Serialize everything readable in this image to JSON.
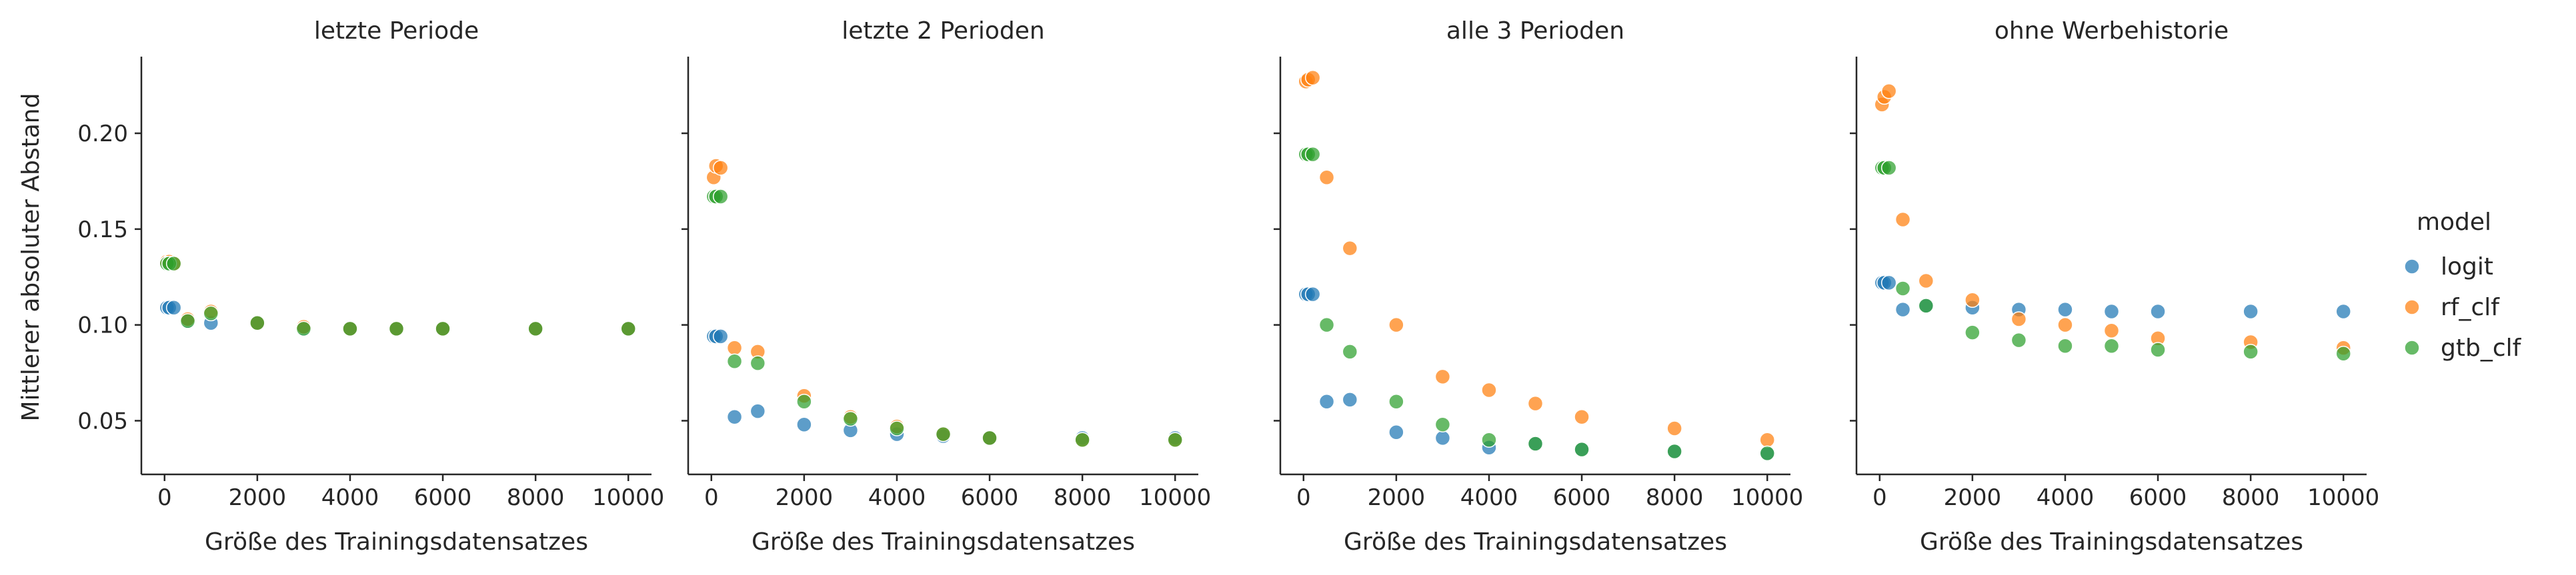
{
  "figure": {
    "ylabel": "Mittlerer absoluter Abstand",
    "legend_title": "model",
    "legend_position": "right",
    "legend_entries": [
      "logit",
      "rf_clf",
      "gtb_clf"
    ],
    "series_colors": {
      "logit": "#1f77b4",
      "rf_clf": "#ff7f0e",
      "gtb_clf": "#2ca02c"
    }
  },
  "chart_data": [
    {
      "type": "scatter",
      "title": "letzte Periode",
      "xlabel": "Größe des Trainingsdatensatzes",
      "ylabel": "Mittlerer absoluter Abstand",
      "xlim": [
        -500,
        10500
      ],
      "ylim": [
        0.022,
        0.24
      ],
      "xticks": [
        0,
        2000,
        4000,
        6000,
        8000,
        10000
      ],
      "yticks": [
        0.05,
        0.1,
        0.15,
        0.2
      ],
      "grid": false,
      "series": [
        {
          "name": "logit",
          "x": [
            50,
            100,
            200,
            500,
            1000,
            2000,
            3000,
            4000,
            5000,
            6000,
            8000,
            10000
          ],
          "y": [
            0.109,
            0.109,
            0.109,
            0.102,
            0.101,
            0.101,
            0.098,
            0.098,
            0.098,
            0.098,
            0.098,
            0.098
          ]
        },
        {
          "name": "rf_clf",
          "x": [
            50,
            100,
            200,
            500,
            1000,
            2000,
            3000,
            4000,
            5000,
            6000,
            8000,
            10000
          ],
          "y": [
            0.133,
            0.133,
            0.132,
            0.103,
            0.107,
            0.101,
            0.099,
            0.098,
            0.098,
            0.098,
            0.098,
            0.098
          ]
        },
        {
          "name": "gtb_clf",
          "x": [
            50,
            100,
            200,
            500,
            1000,
            2000,
            3000,
            4000,
            5000,
            6000,
            8000,
            10000
          ],
          "y": [
            0.132,
            0.132,
            0.132,
            0.102,
            0.106,
            0.101,
            0.098,
            0.098,
            0.098,
            0.098,
            0.098,
            0.098
          ]
        }
      ]
    },
    {
      "type": "scatter",
      "title": "letzte 2 Perioden",
      "xlabel": "Größe des Trainingsdatensatzes",
      "xlim": [
        -500,
        10500
      ],
      "ylim": [
        0.022,
        0.24
      ],
      "xticks": [
        0,
        2000,
        4000,
        6000,
        8000,
        10000
      ],
      "yticks": [
        0.05,
        0.1,
        0.15,
        0.2
      ],
      "grid": false,
      "series": [
        {
          "name": "logit",
          "x": [
            50,
            100,
            200,
            500,
            1000,
            2000,
            3000,
            4000,
            5000,
            6000,
            8000,
            10000
          ],
          "y": [
            0.094,
            0.094,
            0.094,
            0.052,
            0.055,
            0.048,
            0.045,
            0.043,
            0.042,
            0.041,
            0.041,
            0.041
          ]
        },
        {
          "name": "rf_clf",
          "x": [
            50,
            100,
            200,
            500,
            1000,
            2000,
            3000,
            4000,
            5000,
            6000,
            8000,
            10000
          ],
          "y": [
            0.177,
            0.183,
            0.182,
            0.088,
            0.086,
            0.063,
            0.052,
            0.047,
            0.043,
            0.041,
            0.04,
            0.04
          ]
        },
        {
          "name": "gtb_clf",
          "x": [
            50,
            100,
            200,
            500,
            1000,
            2000,
            3000,
            4000,
            5000,
            6000,
            8000,
            10000
          ],
          "y": [
            0.167,
            0.167,
            0.167,
            0.081,
            0.08,
            0.06,
            0.051,
            0.046,
            0.043,
            0.041,
            0.04,
            0.04
          ]
        }
      ]
    },
    {
      "type": "scatter",
      "title": "alle 3 Perioden",
      "xlabel": "Größe des Trainingsdatensatzes",
      "xlim": [
        -500,
        10500
      ],
      "ylim": [
        0.022,
        0.24
      ],
      "xticks": [
        0,
        2000,
        4000,
        6000,
        8000,
        10000
      ],
      "yticks": [
        0.05,
        0.1,
        0.15,
        0.2
      ],
      "grid": false,
      "series": [
        {
          "name": "logit",
          "x": [
            50,
            100,
            200,
            500,
            1000,
            2000,
            3000,
            4000,
            5000,
            6000,
            8000,
            10000
          ],
          "y": [
            0.116,
            0.116,
            0.116,
            0.06,
            0.061,
            0.044,
            0.041,
            0.036,
            0.038,
            0.035,
            0.034,
            0.033
          ]
        },
        {
          "name": "rf_clf",
          "x": [
            50,
            100,
            200,
            500,
            1000,
            2000,
            3000,
            4000,
            5000,
            6000,
            8000,
            10000
          ],
          "y": [
            0.227,
            0.228,
            0.229,
            0.177,
            0.14,
            0.1,
            0.073,
            0.066,
            0.059,
            0.052,
            0.046,
            0.04
          ]
        },
        {
          "name": "gtb_clf",
          "x": [
            50,
            100,
            200,
            500,
            1000,
            2000,
            3000,
            4000,
            5000,
            6000,
            8000,
            10000
          ],
          "y": [
            0.189,
            0.189,
            0.189,
            0.1,
            0.086,
            0.06,
            0.048,
            0.04,
            0.038,
            0.035,
            0.034,
            0.033
          ]
        }
      ]
    },
    {
      "type": "scatter",
      "title": "ohne Werbehistorie",
      "xlabel": "Größe des Trainingsdatensatzes",
      "xlim": [
        -500,
        10500
      ],
      "ylim": [
        0.022,
        0.24
      ],
      "xticks": [
        0,
        2000,
        4000,
        6000,
        8000,
        10000
      ],
      "yticks": [
        0.05,
        0.1,
        0.15,
        0.2
      ],
      "grid": false,
      "series": [
        {
          "name": "logit",
          "x": [
            50,
            100,
            200,
            500,
            1000,
            2000,
            3000,
            4000,
            5000,
            6000,
            8000,
            10000
          ],
          "y": [
            0.122,
            0.122,
            0.122,
            0.108,
            0.11,
            0.109,
            0.108,
            0.108,
            0.107,
            0.107,
            0.107,
            0.107
          ]
        },
        {
          "name": "rf_clf",
          "x": [
            50,
            100,
            200,
            500,
            1000,
            2000,
            3000,
            4000,
            5000,
            6000,
            8000,
            10000
          ],
          "y": [
            0.215,
            0.219,
            0.222,
            0.155,
            0.123,
            0.113,
            0.103,
            0.1,
            0.097,
            0.093,
            0.091,
            0.088
          ]
        },
        {
          "name": "gtb_clf",
          "x": [
            50,
            100,
            200,
            500,
            1000,
            2000,
            3000,
            4000,
            5000,
            6000,
            8000,
            10000
          ],
          "y": [
            0.182,
            0.182,
            0.182,
            0.119,
            0.11,
            0.096,
            0.092,
            0.089,
            0.089,
            0.087,
            0.086,
            0.085
          ]
        }
      ]
    }
  ]
}
